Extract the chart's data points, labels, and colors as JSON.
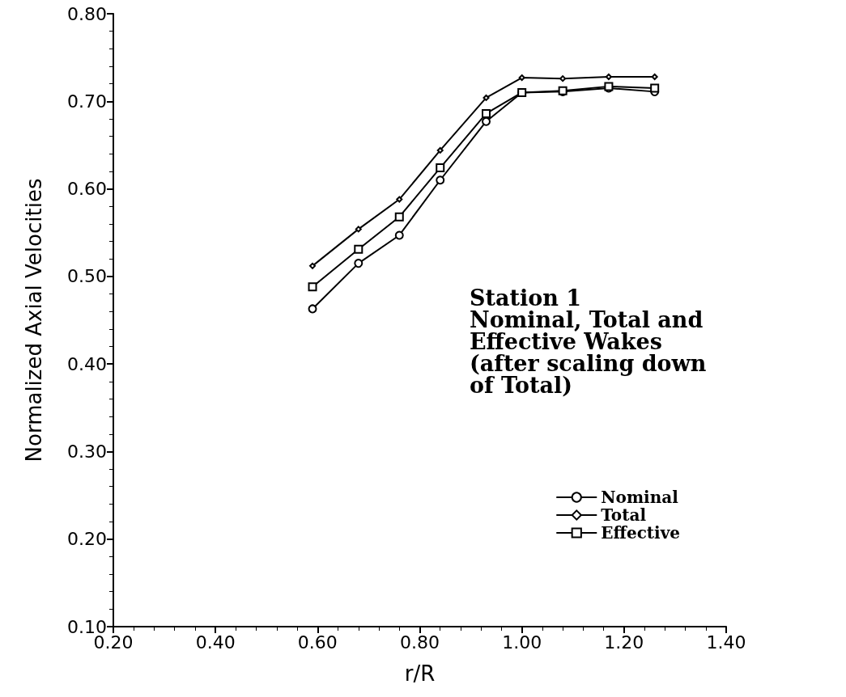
{
  "chart_data": {
    "type": "line",
    "xlabel": "r/R",
    "ylabel": "Normalized Axial Velocities",
    "annotations": [
      "Station 1\nNominal, Total and\nEffective Wakes\n(after scaling down\nof Total)"
    ],
    "x": [
      0.59,
      0.68,
      0.76,
      0.84,
      0.93,
      1.0,
      1.08,
      1.17,
      1.26
    ],
    "series": [
      {
        "name": "Nominal",
        "color": "#000000",
        "marker": "circle",
        "values": [
          0.463,
          0.515,
          0.547,
          0.61,
          0.677,
          0.71,
          0.711,
          0.715,
          0.711
        ]
      },
      {
        "name": "Total",
        "color": "#000000",
        "marker": "diamond",
        "values": [
          0.512,
          0.554,
          0.588,
          0.644,
          0.704,
          0.727,
          0.726,
          0.728,
          0.728
        ]
      },
      {
        "name": "Effective",
        "color": "#000000",
        "marker": "square",
        "values": [
          0.488,
          0.531,
          0.568,
          0.624,
          0.686,
          0.71,
          0.712,
          0.717,
          0.715
        ]
      }
    ],
    "xlim": [
      0.2,
      1.4
    ],
    "xticks": [
      {
        "value": 0.2,
        "label": "0.20"
      },
      {
        "value": 0.4,
        "label": "0.40"
      },
      {
        "value": 0.6,
        "label": "0.60"
      },
      {
        "value": 0.8,
        "label": "0.80"
      },
      {
        "value": 1.0,
        "label": "1.00"
      },
      {
        "value": 1.2,
        "label": "1.20"
      },
      {
        "value": 1.4,
        "label": "1.40"
      }
    ],
    "ylim": [
      0.1,
      0.8
    ],
    "yticks": [
      {
        "value": 0.1,
        "label": "0.10"
      },
      {
        "value": 0.2,
        "label": "0.20"
      },
      {
        "value": 0.3,
        "label": "0.30"
      },
      {
        "value": 0.4,
        "label": "0.40"
      },
      {
        "value": 0.5,
        "label": "0.50"
      },
      {
        "value": 0.6,
        "label": "0.60"
      },
      {
        "value": 0.7,
        "label": "0.70"
      },
      {
        "value": 0.8,
        "label": "0.80"
      }
    ],
    "grid": false,
    "legend": "right",
    "line_style": "solid"
  }
}
